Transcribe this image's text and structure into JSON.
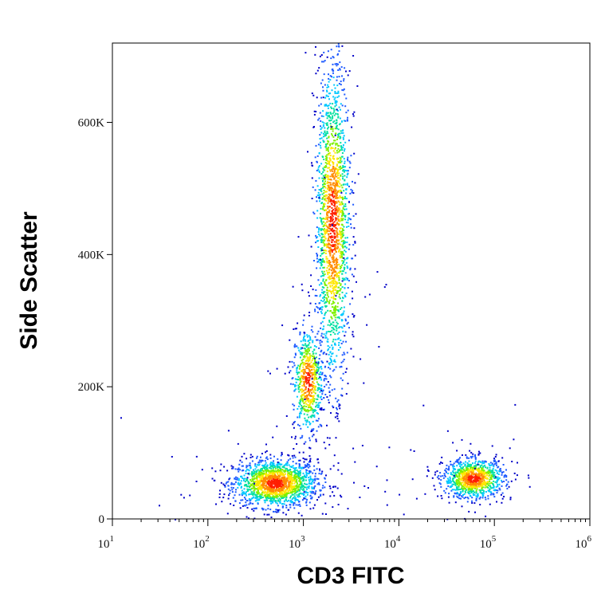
{
  "chart_data": {
    "type": "scatter",
    "style": "flow-cytometry density dot plot (pseudocolor)",
    "xlabel": "CD3 FITC",
    "ylabel": "Side Scatter",
    "x_scale": "log",
    "xlim": [
      10,
      1000000
    ],
    "ylim": [
      0,
      720000
    ],
    "x_ticks": [
      {
        "value": 10,
        "base": "10",
        "exp": "1"
      },
      {
        "value": 100,
        "base": "10",
        "exp": "2"
      },
      {
        "value": 1000,
        "base": "10",
        "exp": "3"
      },
      {
        "value": 10000,
        "base": "10",
        "exp": "4"
      },
      {
        "value": 100000,
        "base": "10",
        "exp": "5"
      },
      {
        "value": 1000000,
        "base": "10",
        "exp": "6"
      }
    ],
    "y_ticks": [
      {
        "value": 0,
        "label": "0"
      },
      {
        "value": 200000,
        "label": "200K"
      },
      {
        "value": 400000,
        "label": "400K"
      },
      {
        "value": 600000,
        "label": "600K"
      }
    ],
    "grid": false,
    "legend": "none",
    "density_colors": [
      "#0000c8",
      "#1e5aff",
      "#00c8ff",
      "#00e0a0",
      "#7ff000",
      "#ffe600",
      "#ff8c00",
      "#ff1e00"
    ],
    "populations": [
      {
        "name": "",
        "x_center": 500,
        "y_center": 55000,
        "x_spread_decades": 0.22,
        "y_spread": 18000,
        "relative_count": 0.9
      },
      {
        "name": "",
        "x_center": 1100,
        "y_center": 210000,
        "x_spread_decades": 0.08,
        "y_spread": 40000,
        "relative_count": 0.35
      },
      {
        "name": "",
        "x_center": 2000,
        "y_center": 450000,
        "x_spread_decades": 0.09,
        "y_spread": 120000,
        "relative_count": 1.0
      },
      {
        "name": "",
        "x_center": 60000,
        "y_center": 62000,
        "x_spread_decades": 0.16,
        "y_spread": 15000,
        "relative_count": 0.55
      }
    ]
  }
}
